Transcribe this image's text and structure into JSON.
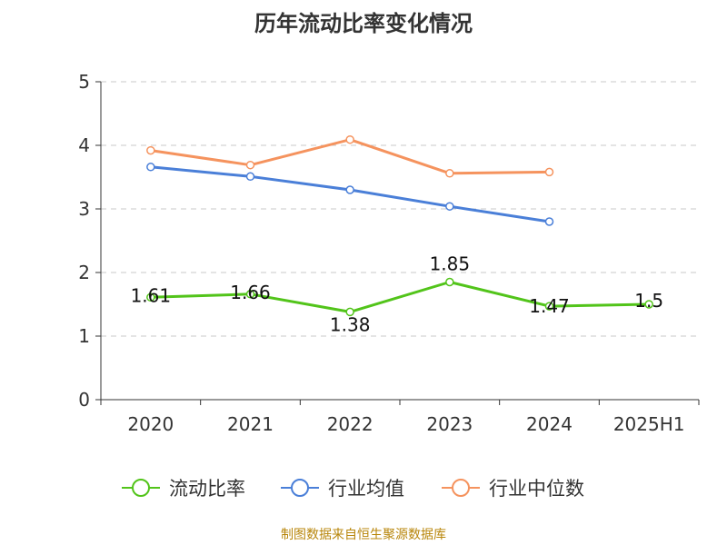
{
  "title": "历年流动比率变化情况",
  "source": "制图数据来自恒生聚源数据库",
  "chart_data": {
    "type": "line",
    "categories": [
      "2020",
      "2021",
      "2022",
      "2023",
      "2024",
      "2025H1"
    ],
    "ylim": [
      0,
      5
    ],
    "yticks": [
      "0",
      "1",
      "2",
      "3",
      "4",
      "5"
    ],
    "grid": true,
    "legend_position": "bottom",
    "series": [
      {
        "name": "流动比率",
        "color": "#52c41a",
        "values": [
          1.61,
          1.66,
          1.38,
          1.85,
          1.47,
          1.5
        ],
        "labels": [
          "1.61",
          "1.66",
          "1.38",
          "1.85",
          "1.47",
          "1.5"
        ]
      },
      {
        "name": "行业均值",
        "color": "#4a7fd8",
        "values": [
          3.66,
          3.51,
          3.3,
          3.04,
          2.8,
          null
        ]
      },
      {
        "name": "行业中位数",
        "color": "#f5935e",
        "values": [
          3.92,
          3.69,
          4.09,
          3.56,
          3.58,
          null
        ]
      }
    ]
  }
}
